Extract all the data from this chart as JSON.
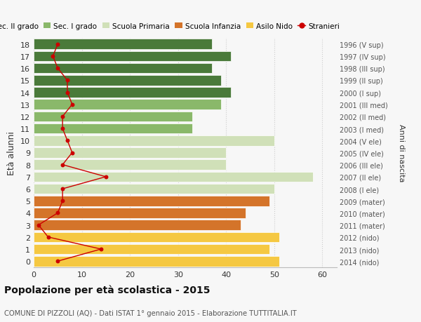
{
  "ages": [
    0,
    1,
    2,
    3,
    4,
    5,
    6,
    7,
    8,
    9,
    10,
    11,
    12,
    13,
    14,
    15,
    16,
    17,
    18
  ],
  "anni_nascita": [
    "2014 (nido)",
    "2013 (nido)",
    "2012 (nido)",
    "2011 (mater)",
    "2010 (mater)",
    "2009 (mater)",
    "2008 (I ele)",
    "2007 (II ele)",
    "2006 (III ele)",
    "2005 (IV ele)",
    "2004 (V ele)",
    "2003 (I med)",
    "2002 (II med)",
    "2001 (III med)",
    "2000 (I sup)",
    "1999 (II sup)",
    "1998 (III sup)",
    "1997 (IV sup)",
    "1996 (V sup)"
  ],
  "bar_values": [
    51,
    49,
    51,
    43,
    44,
    49,
    50,
    58,
    40,
    40,
    50,
    33,
    33,
    39,
    41,
    39,
    37,
    41,
    37
  ],
  "bar_colors": [
    "#f5c842",
    "#f5c842",
    "#f5c842",
    "#d4742a",
    "#d4742a",
    "#d4742a",
    "#d0e0b8",
    "#d0e0b8",
    "#d0e0b8",
    "#d0e0b8",
    "#d0e0b8",
    "#8ab86a",
    "#8ab86a",
    "#8ab86a",
    "#4a7a3a",
    "#4a7a3a",
    "#4a7a3a",
    "#4a7a3a",
    "#4a7a3a"
  ],
  "stranieri_values": [
    5,
    14,
    3,
    1,
    5,
    6,
    6,
    15,
    6,
    8,
    7,
    6,
    6,
    8,
    7,
    7,
    5,
    4,
    5
  ],
  "legend_labels": [
    "Sec. II grado",
    "Sec. I grado",
    "Scuola Primaria",
    "Scuola Infanzia",
    "Asilo Nido",
    "Stranieri"
  ],
  "legend_colors": [
    "#4a7a3a",
    "#8ab86a",
    "#d0e0b8",
    "#d4742a",
    "#f5c842",
    "#cc0000"
  ],
  "ylabel_text": "Età alunni",
  "right_ylabel_text": "Anni di nascita",
  "title": "Popolazione per età scolastica - 2015",
  "subtitle": "COMUNE DI PIZZOLI (AQ) - Dati ISTAT 1° gennaio 2015 - Elaborazione TUTTITALIA.IT",
  "xlim": [
    0,
    63
  ],
  "bg_color": "#f7f7f7",
  "grid_color": "#cccccc"
}
